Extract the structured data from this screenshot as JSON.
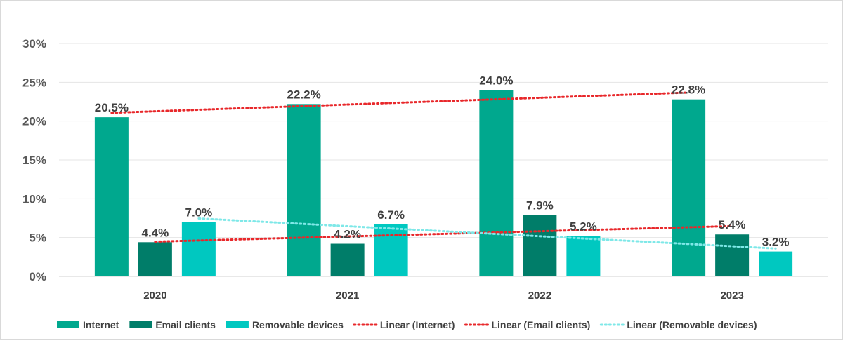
{
  "chart_data": {
    "type": "bar",
    "title": "",
    "xlabel": "",
    "ylabel": "",
    "categories": [
      "2020",
      "2021",
      "2022",
      "2023"
    ],
    "ylim": [
      0,
      30
    ],
    "yticks": [
      0,
      5,
      10,
      15,
      20,
      25,
      30
    ],
    "ytick_labels": [
      "0%",
      "5%",
      "10%",
      "15%",
      "20%",
      "25%",
      "30%"
    ],
    "grid": true,
    "legend_position": "bottom",
    "series": [
      {
        "name": "Internet",
        "color": "#00a88e",
        "values": [
          20.5,
          22.2,
          24.0,
          22.8
        ],
        "labels": [
          "20.5%",
          "22.2%",
          "24.0%",
          "22.8%"
        ]
      },
      {
        "name": "Email clients",
        "color": "#007d69",
        "values": [
          4.4,
          4.2,
          7.9,
          5.4
        ],
        "labels": [
          "4.4%",
          "4.2%",
          "7.9%",
          "5.4%"
        ]
      },
      {
        "name": "Removable devices",
        "color": "#00c8c0",
        "values": [
          7.0,
          6.7,
          5.2,
          3.2
        ],
        "labels": [
          "7.0%",
          "6.7%",
          "5.2%",
          "3.2%"
        ]
      }
    ],
    "trendlines": [
      {
        "name": "Linear (Internet)",
        "series": "Internet",
        "color": "#e8282b"
      },
      {
        "name": "Linear (Email clients)",
        "series": "Email clients",
        "color": "#e8282b"
      },
      {
        "name": "Linear (Removable devices)",
        "series": "Removable devices",
        "color": "#7fe8e8"
      }
    ]
  }
}
